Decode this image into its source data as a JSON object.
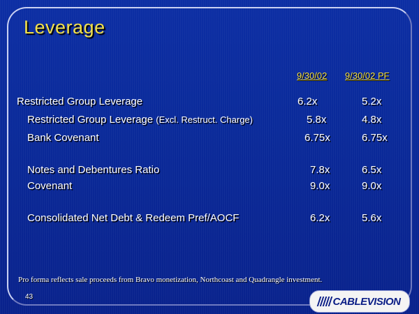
{
  "title": "Leverage",
  "columns": [
    "9/30/02",
    "9/30/02 PF"
  ],
  "rows": [
    {
      "label": "Restricted Group Leverage",
      "suffix": "",
      "v1": "6.2x",
      "v2": "5.2x"
    },
    {
      "label": "Restricted Group Leverage",
      "suffix": "(Excl. Restruct. Charge)",
      "v1": "5.8x",
      "v2": "4.8x"
    },
    {
      "label": "Bank Covenant",
      "suffix": "",
      "v1": "6.75x",
      "v2": "6.75x"
    },
    {
      "label": "Notes and Debentures Ratio",
      "suffix": "",
      "v1": "7.8x",
      "v2": "6.5x"
    },
    {
      "label": "Covenant",
      "suffix": "",
      "v1": "9.0x",
      "v2": "9.0x"
    },
    {
      "label": "Consolidated Net Debt & Redeem Pref/AOCF",
      "suffix": "",
      "v1": "6.2x",
      "v2": "5.6x"
    }
  ],
  "footnote": "Pro forma reflects sale proceeds from Bravo monetization, Northcoast and Quadrangle investment.",
  "page_number": "43",
  "logo_text": "CABLEVISION",
  "colors": {
    "title": "#f2e04a",
    "background": "#0a2a9a",
    "text": "#ffffff"
  }
}
